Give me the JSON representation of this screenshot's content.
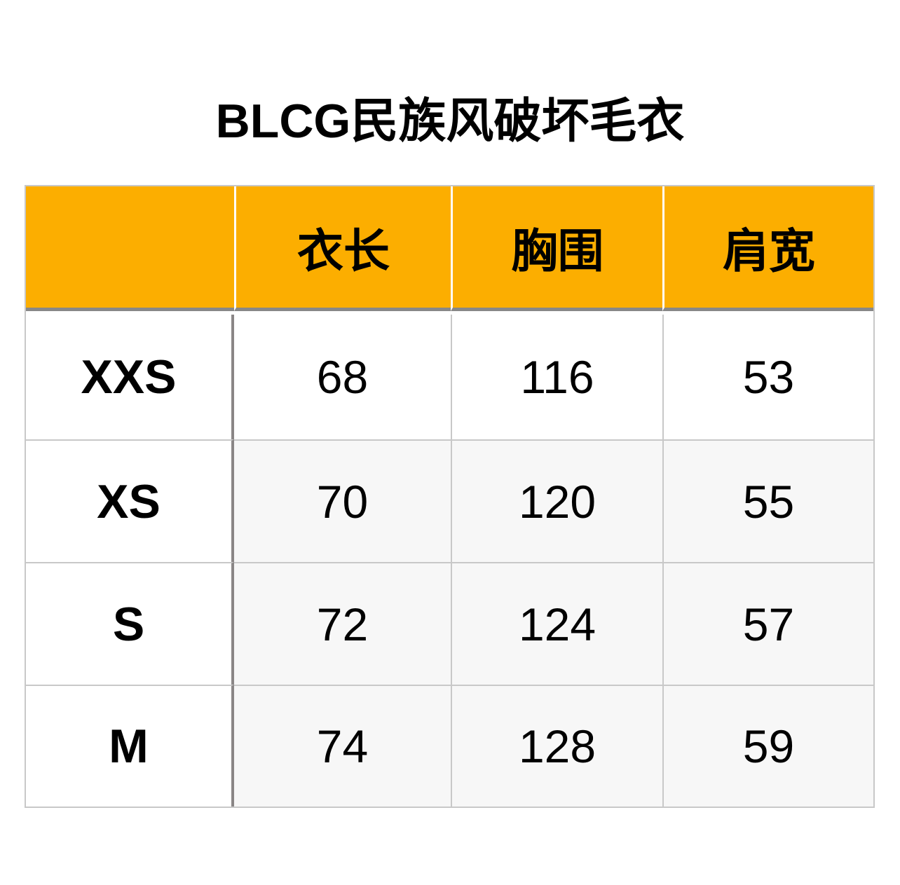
{
  "title": "BLCG民族风破坏毛衣",
  "colors": {
    "header_bg": "#fcae00",
    "alt_row_bg": "#f7f7f7",
    "grid": "#c8c8c8",
    "header_divider": "#888888"
  },
  "table": {
    "headers": [
      "",
      "衣长",
      "胸围",
      "肩宽"
    ],
    "rows": [
      {
        "size": "XXS",
        "values": [
          "68",
          "116",
          "53"
        ]
      },
      {
        "size": "XS",
        "values": [
          "70",
          "120",
          "55"
        ]
      },
      {
        "size": "S",
        "values": [
          "72",
          "124",
          "57"
        ]
      },
      {
        "size": "M",
        "values": [
          "74",
          "128",
          "59"
        ]
      }
    ]
  }
}
